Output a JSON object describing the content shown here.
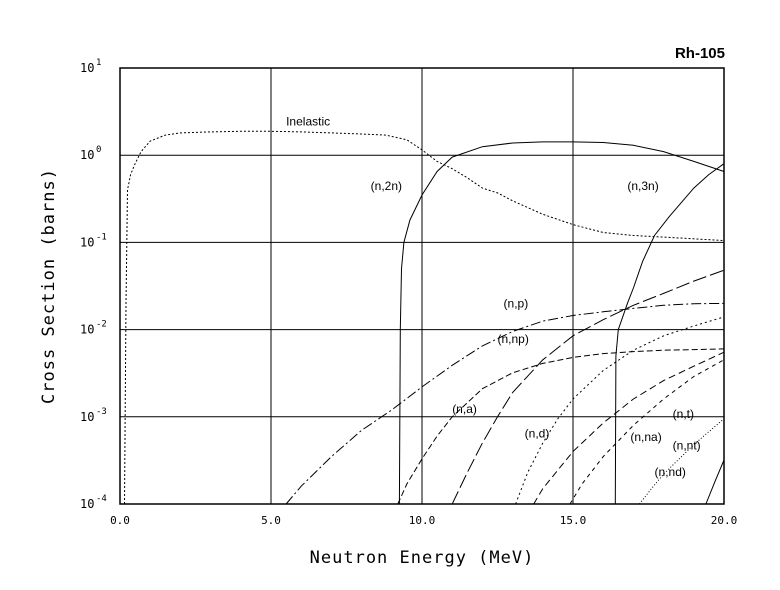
{
  "chart_data": {
    "type": "line",
    "title": "Rh-105",
    "xlabel": "Neutron Energy (MeV)",
    "ylabel": "Cross Section (barns)",
    "xlim": [
      0,
      20
    ],
    "ylim": [
      0.0001,
      10
    ],
    "yscale": "log",
    "grid": true,
    "xticks": [
      0,
      5,
      10,
      15,
      20
    ],
    "xtick_labels": [
      "0.0",
      "5.0",
      "10.0",
      "15.0",
      "20.0"
    ],
    "yticks": [
      0.0001,
      0.001,
      0.01,
      0.1,
      1,
      10
    ],
    "ytick_labels": [
      {
        "base": "10",
        "exp": "-4"
      },
      {
        "base": "10",
        "exp": "-3"
      },
      {
        "base": "10",
        "exp": "-2"
      },
      {
        "base": "10",
        "exp": "-1"
      },
      {
        "base": "10",
        "exp": "0"
      },
      {
        "base": "10",
        "exp": "1"
      }
    ],
    "series": [
      {
        "name": "Inelastic",
        "dash": "2,2",
        "points": [
          [
            0.15,
            0.0001
          ],
          [
            0.2,
            0.02
          ],
          [
            0.25,
            0.4
          ],
          [
            0.35,
            0.6
          ],
          [
            0.5,
            0.8
          ],
          [
            0.7,
            1.1
          ],
          [
            1,
            1.45
          ],
          [
            1.5,
            1.7
          ],
          [
            2,
            1.8
          ],
          [
            3,
            1.85
          ],
          [
            4,
            1.88
          ],
          [
            5,
            1.88
          ],
          [
            6,
            1.85
          ],
          [
            7,
            1.8
          ],
          [
            8,
            1.75
          ],
          [
            8.8,
            1.7
          ],
          [
            9.5,
            1.5
          ],
          [
            10,
            1.15
          ],
          [
            10.5,
            0.85
          ],
          [
            11,
            0.7
          ],
          [
            11.5,
            0.55
          ],
          [
            12,
            0.42
          ],
          [
            12.5,
            0.37
          ],
          [
            13,
            0.3
          ],
          [
            14,
            0.21
          ],
          [
            15,
            0.16
          ],
          [
            16,
            0.13
          ],
          [
            17,
            0.12
          ],
          [
            18,
            0.115
          ],
          [
            19,
            0.11
          ],
          [
            20,
            0.105
          ]
        ],
        "label": {
          "text": "Inelastic",
          "x": 5.5,
          "y": 2.2,
          "anchor": "start"
        }
      },
      {
        "name": "(n,2n)",
        "dash": "",
        "points": [
          [
            9.25,
            0.0001
          ],
          [
            9.28,
            0.01
          ],
          [
            9.32,
            0.05
          ],
          [
            9.4,
            0.1
          ],
          [
            9.6,
            0.18
          ],
          [
            10,
            0.35
          ],
          [
            10.5,
            0.65
          ],
          [
            11,
            0.95
          ],
          [
            12,
            1.25
          ],
          [
            13,
            1.38
          ],
          [
            14,
            1.42
          ],
          [
            15,
            1.42
          ],
          [
            16,
            1.4
          ],
          [
            17,
            1.3
          ],
          [
            18,
            1.1
          ],
          [
            19,
            0.85
          ],
          [
            20,
            0.65
          ]
        ],
        "label": {
          "text": "(n,2n)",
          "x": 8.3,
          "y": 0.4,
          "anchor": "start"
        }
      },
      {
        "name": "(n,3n)",
        "dash": "",
        "points": [
          [
            16.4,
            0.0001
          ],
          [
            16.42,
            0.005
          ],
          [
            16.5,
            0.01
          ],
          [
            16.8,
            0.02
          ],
          [
            17,
            0.03
          ],
          [
            17.3,
            0.06
          ],
          [
            17.7,
            0.12
          ],
          [
            18.2,
            0.2
          ],
          [
            19,
            0.42
          ],
          [
            19.5,
            0.6
          ],
          [
            20,
            0.8
          ]
        ],
        "label": {
          "text": "(n,3n)",
          "x": 16.8,
          "y": 0.4,
          "anchor": "start"
        }
      },
      {
        "name": "(n,p)",
        "dash": "10,3,2,3",
        "points": [
          [
            5.5,
            0.0001
          ],
          [
            6,
            0.00016
          ],
          [
            7,
            0.00035
          ],
          [
            8,
            0.0007
          ],
          [
            9,
            0.0012
          ],
          [
            10,
            0.0022
          ],
          [
            11,
            0.0039
          ],
          [
            12,
            0.0065
          ],
          [
            13,
            0.0095
          ],
          [
            14,
            0.0125
          ],
          [
            15,
            0.0145
          ],
          [
            16,
            0.016
          ],
          [
            17,
            0.0175
          ],
          [
            18,
            0.019
          ],
          [
            19,
            0.0198
          ],
          [
            20,
            0.02
          ]
        ],
        "label": {
          "text": "(n,p)",
          "x": 12.7,
          "y": 0.018,
          "anchor": "start"
        }
      },
      {
        "name": "(n,np)",
        "dash": "14,4",
        "points": [
          [
            11,
            0.0001
          ],
          [
            11.5,
            0.00023
          ],
          [
            12,
            0.0005
          ],
          [
            12.5,
            0.001
          ],
          [
            13,
            0.0019
          ],
          [
            14,
            0.0045
          ],
          [
            15,
            0.0085
          ],
          [
            16,
            0.013
          ],
          [
            17,
            0.019
          ],
          [
            18,
            0.026
          ],
          [
            19,
            0.036
          ],
          [
            20,
            0.048
          ]
        ],
        "label": {
          "text": "(n,np)",
          "x": 12.5,
          "y": 0.007,
          "anchor": "start"
        }
      },
      {
        "name": "(n,a)",
        "dash": "6,3",
        "points": [
          [
            9.2,
            0.0001
          ],
          [
            9.5,
            0.00017
          ],
          [
            10,
            0.00033
          ],
          [
            10.5,
            0.0006
          ],
          [
            11,
            0.001
          ],
          [
            12,
            0.0021
          ],
          [
            13,
            0.0032
          ],
          [
            14,
            0.0041
          ],
          [
            15,
            0.0048
          ],
          [
            16,
            0.0053
          ],
          [
            17,
            0.0056
          ],
          [
            18,
            0.0058
          ],
          [
            19,
            0.0059
          ],
          [
            20,
            0.006
          ]
        ],
        "label": {
          "text": "(n,a)",
          "x": 11.0,
          "y": 0.0011,
          "anchor": "start"
        }
      },
      {
        "name": "(n,d)",
        "dash": "2,3",
        "points": [
          [
            13.1,
            0.0001
          ],
          [
            13.5,
            0.00023
          ],
          [
            14,
            0.0005
          ],
          [
            14.5,
            0.00095
          ],
          [
            15,
            0.0016
          ],
          [
            16,
            0.0034
          ],
          [
            17,
            0.0058
          ],
          [
            18,
            0.0085
          ],
          [
            19,
            0.011
          ],
          [
            20,
            0.014
          ]
        ],
        "label": {
          "text": "(n,d)",
          "x": 13.4,
          "y": 0.00058,
          "anchor": "start"
        }
      },
      {
        "name": "(n,t)",
        "dash": "7,4",
        "points": [
          [
            13.7,
            0.0001
          ],
          [
            14,
            0.00015
          ],
          [
            15,
            0.0004
          ],
          [
            16,
            0.00085
          ],
          [
            17,
            0.0016
          ],
          [
            18,
            0.0026
          ],
          [
            19,
            0.0038
          ],
          [
            20,
            0.0055
          ]
        ],
        "label": {
          "text": "(n,t)",
          "x": 18.3,
          "y": 0.00097,
          "anchor": "start"
        }
      },
      {
        "name": "(n,na)",
        "dash": "4,4",
        "points": [
          [
            14.9,
            0.0001
          ],
          [
            15.3,
            0.00017
          ],
          [
            16,
            0.00035
          ],
          [
            17,
            0.0008
          ],
          [
            18,
            0.0016
          ],
          [
            19,
            0.0029
          ],
          [
            20,
            0.0045
          ]
        ],
        "label": {
          "text": "(n,na)",
          "x": 16.9,
          "y": 0.00053,
          "anchor": "start"
        }
      },
      {
        "name": "(n,nt)",
        "dash": "1,2",
        "points": [
          [
            17.2,
            0.0001
          ],
          [
            17.6,
            0.00015
          ],
          [
            18,
            0.00022
          ],
          [
            19,
            0.00048
          ],
          [
            20,
            0.00095
          ]
        ],
        "label": {
          "text": "(n,nt)",
          "x": 18.3,
          "y": 0.00042,
          "anchor": "start"
        }
      },
      {
        "name": "(n,nd)",
        "dash": "",
        "points": [
          [
            19.4,
            0.0001
          ],
          [
            19.7,
            0.00018
          ],
          [
            20,
            0.00032
          ]
        ],
        "label": {
          "text": "(n,nd)",
          "x": 17.7,
          "y": 0.00021,
          "anchor": "start"
        }
      }
    ]
  }
}
